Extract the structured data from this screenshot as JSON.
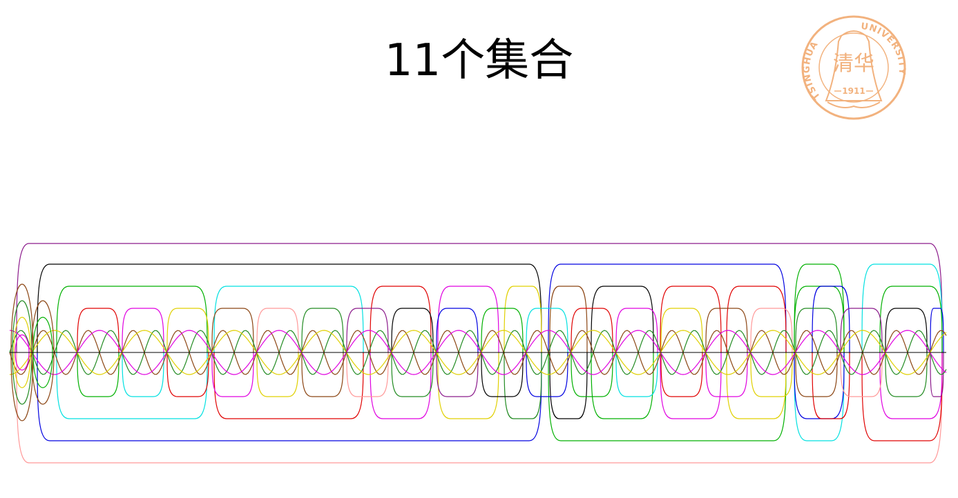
{
  "title": "11个集合",
  "logo": {
    "arc_text_left": "TSINGHUA",
    "arc_text_right": "UNIVERSITY",
    "year": "1911",
    "chars": "清华",
    "color": "#f2b27e"
  },
  "diagram": {
    "set_count": 11,
    "colors": [
      "#8b1a8b",
      "#000000",
      "#0000e0",
      "#00b000",
      "#00e0e0",
      "#e00000",
      "#e000e0",
      "#e0d000",
      "#8b4513",
      "#ff9999",
      "#228b22"
    ]
  }
}
